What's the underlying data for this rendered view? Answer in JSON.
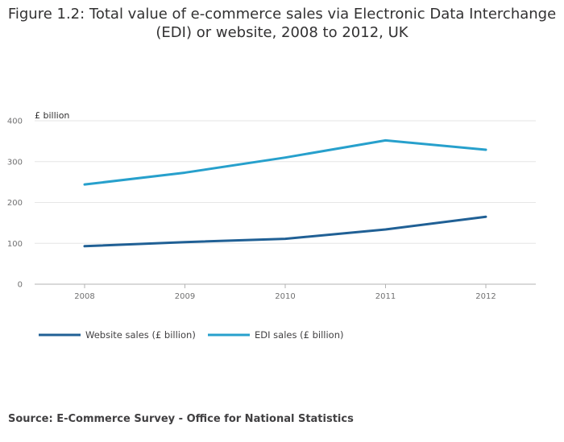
{
  "title_line1": "Figure 1.2: Total value of e-commerce sales via Electronic Data Interchange",
  "title_line2": "(EDI) or website, 2008 to 2012, UK",
  "source": "Source: E-Commerce Survey - Office for National Statistics",
  "chart_data": {
    "type": "line",
    "title": "Figure 1.2: Total value of e-commerce sales via Electronic Data Interchange (EDI) or website, 2008 to 2012, UK",
    "ylabel": "£ billion",
    "xlabel": "",
    "categories": [
      "2008",
      "2009",
      "2010",
      "2011",
      "2012"
    ],
    "yticks": [
      0,
      100,
      200,
      300,
      400
    ],
    "ylim": [
      0,
      400
    ],
    "grid": true,
    "legend_position": "bottom-left",
    "series": [
      {
        "name": "Website sales (£ billion)",
        "color": "#206095",
        "values": [
          93,
          103,
          111,
          134,
          165
        ]
      },
      {
        "name": "EDI sales (£ billion)",
        "color": "#27a0cc",
        "values": [
          244,
          273,
          310,
          352,
          329
        ]
      }
    ]
  }
}
